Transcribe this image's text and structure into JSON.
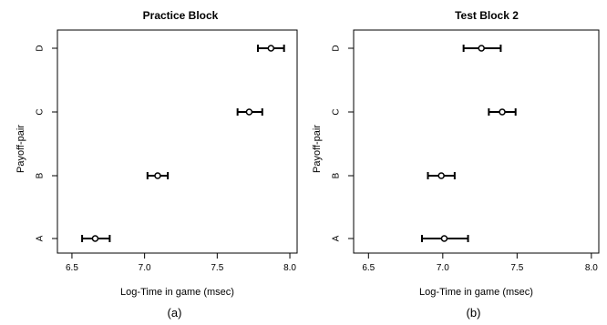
{
  "chart_data": [
    {
      "type": "scatter",
      "panel_label": "(a)",
      "title": "Practice Block",
      "xlabel": "Log-Time in game (msec)",
      "ylabel": "Payoff-pair",
      "xlim": [
        6.4,
        8.05
      ],
      "x_ticks": [
        "6.5",
        "7.0",
        "7.5",
        "8.0"
      ],
      "categories": [
        "A",
        "B",
        "C",
        "D"
      ],
      "points": [
        {
          "category": "A",
          "x": 6.66,
          "lower": 6.57,
          "upper": 6.76
        },
        {
          "category": "B",
          "x": 7.09,
          "lower": 7.02,
          "upper": 7.16
        },
        {
          "category": "C",
          "x": 7.72,
          "lower": 7.64,
          "upper": 7.81
        },
        {
          "category": "D",
          "x": 7.87,
          "lower": 7.78,
          "upper": 7.96
        }
      ],
      "grid": false
    },
    {
      "type": "scatter",
      "panel_label": "(b)",
      "title": "Test Block 2",
      "xlabel": "Log-Time in game (msec)",
      "ylabel": "Payoff-pair",
      "xlim": [
        6.4,
        8.05
      ],
      "x_ticks": [
        "6.5",
        "7.0",
        "7.5",
        "8.0"
      ],
      "categories": [
        "A",
        "B",
        "C",
        "D"
      ],
      "points": [
        {
          "category": "A",
          "x": 7.01,
          "lower": 6.86,
          "upper": 7.17
        },
        {
          "category": "B",
          "x": 6.99,
          "lower": 6.9,
          "upper": 7.08
        },
        {
          "category": "C",
          "x": 7.4,
          "lower": 7.31,
          "upper": 7.49
        },
        {
          "category": "D",
          "x": 7.26,
          "lower": 7.14,
          "upper": 7.39
        }
      ],
      "grid": false
    }
  ]
}
